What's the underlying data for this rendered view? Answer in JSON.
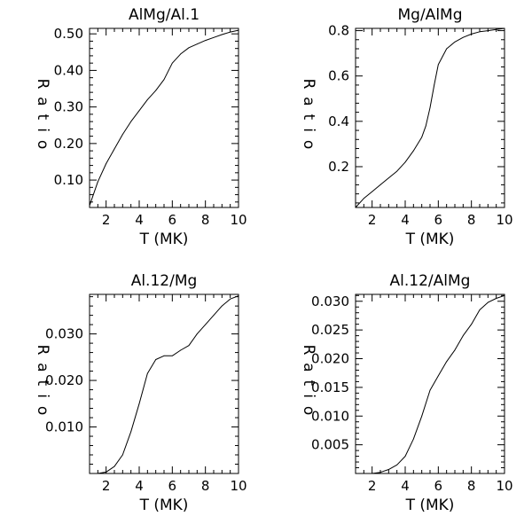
{
  "chart_data": [
    {
      "type": "line",
      "title": "AlMg/Al.1",
      "xlabel": "T (MK)",
      "ylabel": "Ratio",
      "xlim": [
        1,
        10
      ],
      "ylim": [
        0.025,
        0.515
      ],
      "x_ticks": [
        2,
        4,
        6,
        8,
        10
      ],
      "y_ticks": [
        0.1,
        0.2,
        0.3,
        0.4,
        0.5
      ],
      "y_tick_labels": [
        "0.10",
        "0.20",
        "0.30",
        "0.40",
        "0.50"
      ],
      "series": [
        {
          "x": [
            1.0,
            1.5,
            2.0,
            2.5,
            3.0,
            3.5,
            4.0,
            4.5,
            5.0,
            5.5,
            6.0,
            6.5,
            7.0,
            7.5,
            8.0,
            8.5,
            9.0,
            9.5,
            10.0
          ],
          "y": [
            0.03,
            0.095,
            0.145,
            0.185,
            0.225,
            0.26,
            0.29,
            0.32,
            0.345,
            0.375,
            0.42,
            0.445,
            0.462,
            0.472,
            0.482,
            0.49,
            0.498,
            0.505,
            0.51
          ]
        }
      ],
      "grid": false
    },
    {
      "type": "line",
      "title": "Mg/AlMg",
      "xlabel": "T (MK)",
      "ylabel": "Ratio",
      "xlim": [
        1,
        10
      ],
      "ylim": [
        0.02,
        0.81
      ],
      "x_ticks": [
        2,
        4,
        6,
        8,
        10
      ],
      "y_ticks": [
        0.2,
        0.4,
        0.6,
        0.8
      ],
      "y_tick_labels": [
        "0.2",
        "0.4",
        "0.6",
        "0.8"
      ],
      "series": [
        {
          "x": [
            1.0,
            1.5,
            2.0,
            2.5,
            3.0,
            3.5,
            4.0,
            4.5,
            5.0,
            5.25,
            5.5,
            5.75,
            6.0,
            6.5,
            7.0,
            7.5,
            8.0,
            8.5,
            9.0,
            9.5,
            10.0
          ],
          "y": [
            0.02,
            0.06,
            0.09,
            0.12,
            0.15,
            0.18,
            0.22,
            0.27,
            0.33,
            0.38,
            0.46,
            0.56,
            0.65,
            0.72,
            0.75,
            0.77,
            0.785,
            0.795,
            0.8,
            0.805,
            0.81
          ]
        }
      ],
      "grid": false
    },
    {
      "type": "line",
      "title": "Al.12/Mg",
      "xlabel": "T (MK)",
      "ylabel": "Ratio",
      "xlim": [
        1,
        10
      ],
      "ylim": [
        0.0,
        0.0385
      ],
      "x_ticks": [
        2,
        4,
        6,
        8,
        10
      ],
      "y_ticks": [
        0.01,
        0.02,
        0.03
      ],
      "y_tick_labels": [
        "0.010",
        "0.020",
        "0.030"
      ],
      "series": [
        {
          "x": [
            1.0,
            1.5,
            2.0,
            2.5,
            3.0,
            3.5,
            4.0,
            4.5,
            5.0,
            5.5,
            6.0,
            6.5,
            7.0,
            7.5,
            8.0,
            8.5,
            9.0,
            9.5,
            10.0
          ],
          "y": [
            0.0,
            0.0,
            0.0003,
            0.0015,
            0.004,
            0.009,
            0.015,
            0.0215,
            0.0245,
            0.0253,
            0.0253,
            0.0265,
            0.0275,
            0.03,
            0.032,
            0.034,
            0.036,
            0.0375,
            0.0382
          ]
        }
      ],
      "grid": false
    },
    {
      "type": "line",
      "title": "Al.12/AlMg",
      "xlabel": "T (MK)",
      "ylabel": "Ratio",
      "xlim": [
        1,
        10
      ],
      "ylim": [
        0.0,
        0.0312
      ],
      "x_ticks": [
        2,
        4,
        6,
        8,
        10
      ],
      "y_ticks": [
        0.005,
        0.01,
        0.015,
        0.02,
        0.025,
        0.03
      ],
      "y_tick_labels": [
        "0.005",
        "0.010",
        "0.015",
        "0.020",
        "0.025",
        "0.030"
      ],
      "series": [
        {
          "x": [
            1.0,
            1.5,
            2.0,
            2.5,
            3.0,
            3.5,
            4.0,
            4.5,
            5.0,
            5.5,
            6.0,
            6.5,
            7.0,
            7.5,
            8.0,
            8.5,
            9.0,
            9.5,
            10.0
          ],
          "y": [
            0.0,
            0.0,
            0.0,
            0.0002,
            0.0007,
            0.0015,
            0.003,
            0.006,
            0.01,
            0.0145,
            0.017,
            0.0195,
            0.0215,
            0.024,
            0.026,
            0.0285,
            0.0298,
            0.0305,
            0.031
          ]
        }
      ],
      "grid": false
    }
  ]
}
